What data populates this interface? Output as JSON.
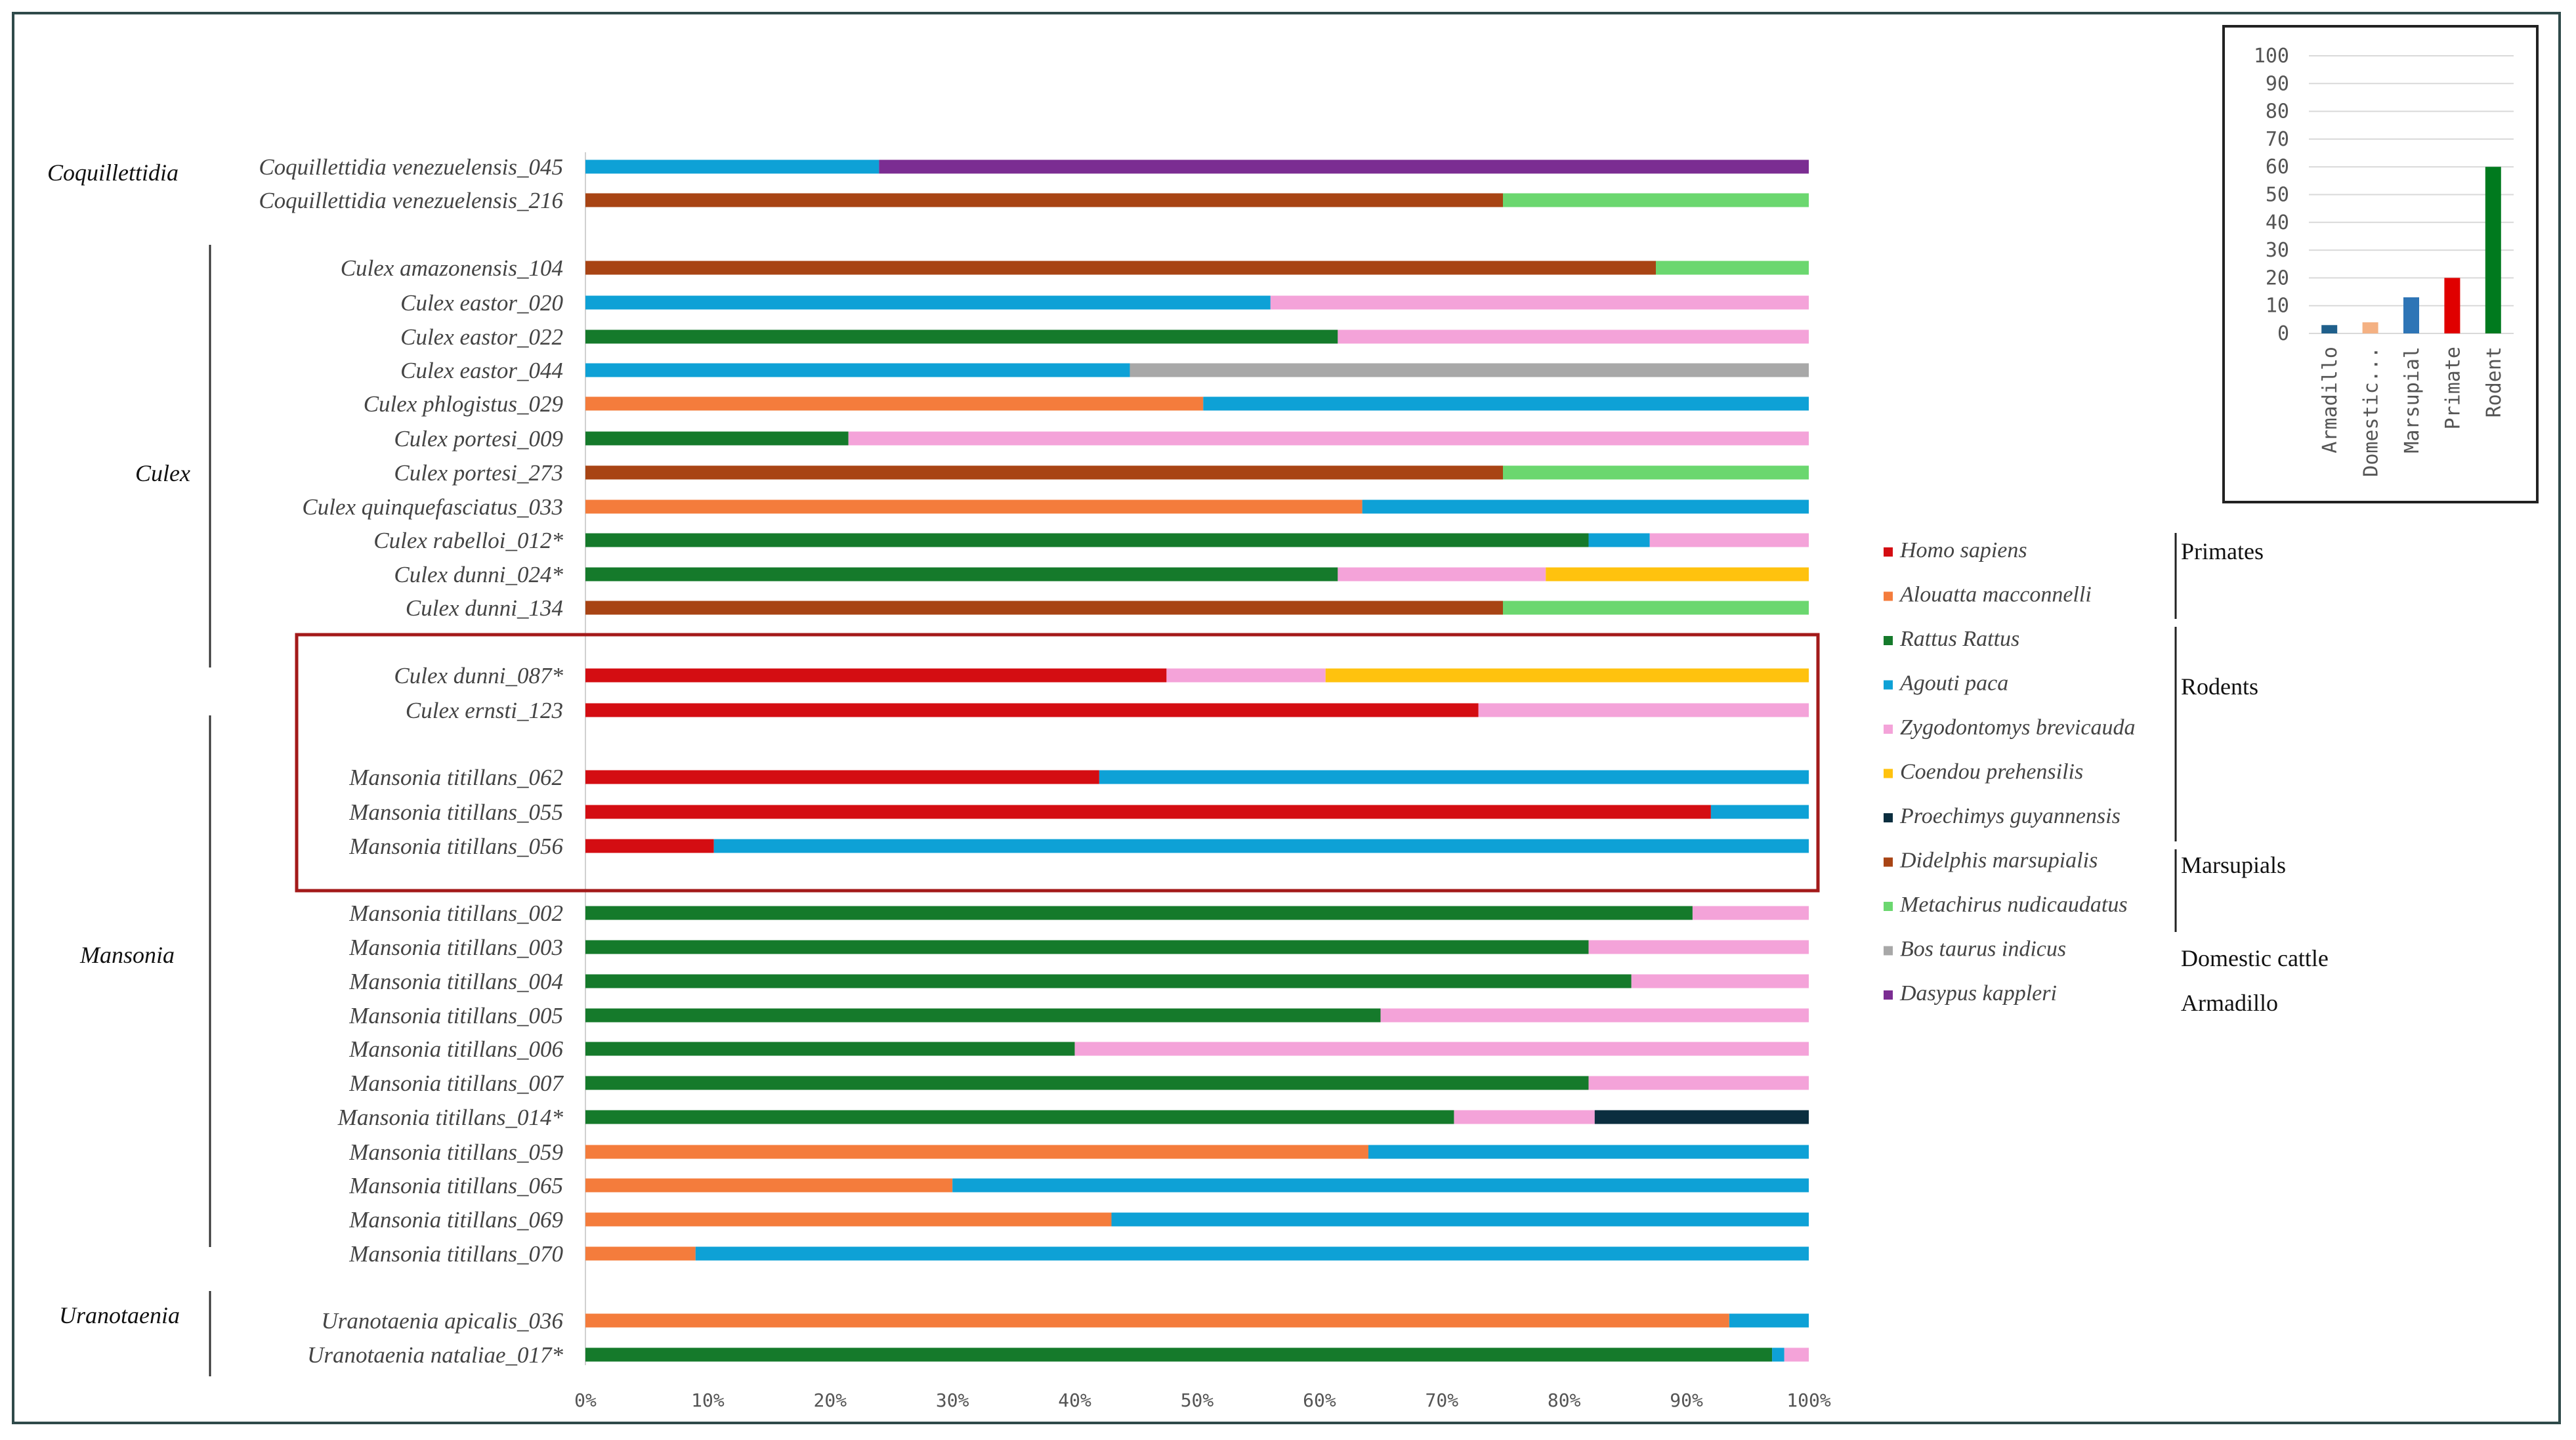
{
  "chart_data": [
    {
      "type": "bar",
      "orientation": "horizontal",
      "stacked": true,
      "xlim": [
        0,
        100
      ],
      "x_ticks": [
        "0%",
        "10%",
        "20%",
        "30%",
        "40%",
        "50%",
        "60%",
        "70%",
        "80%",
        "90%",
        "100%"
      ],
      "colors": {
        "Homo sapiens": "#d40d12",
        "Alouatta macconnelli": "#f47c3c",
        "Rattus Rattus": "#157a2b",
        "Agouti paca": "#0ea1d6",
        "Zygodontomys brevicauda": "#f4a3d9",
        "Coendou prehensilis": "#ffc20e",
        "Proechimys guyannensis": "#0b2e3f",
        "Didelphis marsupialis": "#a84414",
        "Metachirus nudicaudatus": "#6bd76f",
        "Bos taurus indicus": "#a8a8a8",
        "Dasypus kappleri": "#7b2d92"
      },
      "legend": [
        {
          "name": "Homo sapiens",
          "group": "Primates"
        },
        {
          "name": "Alouatta macconnelli",
          "group": "Primates"
        },
        {
          "name": "Rattus Rattus",
          "group": "Rodents"
        },
        {
          "name": "Agouti paca",
          "group": "Rodents"
        },
        {
          "name": "Zygodontomys brevicauda",
          "group": "Rodents"
        },
        {
          "name": "Coendou prehensilis",
          "group": "Rodents"
        },
        {
          "name": "Proechimys guyannensis",
          "group": "Rodents"
        },
        {
          "name": "Didelphis marsupialis",
          "group": "Marsupials"
        },
        {
          "name": "Metachirus nudicaudatus",
          "group": "Marsupials"
        },
        {
          "name": "Bos taurus indicus",
          "group": "Domestic cattle"
        },
        {
          "name": "Dasypus kappleri",
          "group": "Armadillo"
        }
      ],
      "groups": [
        "Primates",
        "Rodents",
        "Marsupials",
        "Domestic cattle",
        "Armadillo"
      ],
      "genera": [
        {
          "name": "Coquillettidia"
        },
        {
          "name": "Culex"
        },
        {
          "name": "Mansonia"
        },
        {
          "name": "Uranotaenia"
        }
      ],
      "rows": [
        {
          "label": "Coquillettidia venezuelensis_045",
          "segments": [
            {
              "species": "Agouti paca",
              "value": 24
            },
            {
              "species": "Dasypus kappleri",
              "value": 76
            }
          ]
        },
        {
          "label": "Coquillettidia venezuelensis_216",
          "segments": [
            {
              "species": "Didelphis marsupialis",
              "value": 75
            },
            {
              "species": "Metachirus nudicaudatus",
              "value": 25
            }
          ]
        },
        {
          "label": "Culex amazonensis_104",
          "segments": [
            {
              "species": "Didelphis marsupialis",
              "value": 87.5
            },
            {
              "species": "Metachirus nudicaudatus",
              "value": 12.5
            }
          ]
        },
        {
          "label": "Culex eastor_020",
          "segments": [
            {
              "species": "Agouti paca",
              "value": 56
            },
            {
              "species": "Zygodontomys brevicauda",
              "value": 44
            }
          ]
        },
        {
          "label": "Culex eastor_022",
          "segments": [
            {
              "species": "Rattus Rattus",
              "value": 61.5
            },
            {
              "species": "Zygodontomys brevicauda",
              "value": 38.5
            }
          ]
        },
        {
          "label": "Culex eastor_044",
          "segments": [
            {
              "species": "Agouti paca",
              "value": 44.5
            },
            {
              "species": "Bos taurus indicus",
              "value": 55.5
            }
          ]
        },
        {
          "label": "Culex phlogistus_029",
          "segments": [
            {
              "species": "Alouatta macconnelli",
              "value": 50.5
            },
            {
              "species": "Agouti paca",
              "value": 49.5
            }
          ]
        },
        {
          "label": "Culex portesi_009",
          "segments": [
            {
              "species": "Rattus Rattus",
              "value": 21.5
            },
            {
              "species": "Zygodontomys brevicauda",
              "value": 78.5
            }
          ]
        },
        {
          "label": "Culex portesi_273",
          "segments": [
            {
              "species": "Didelphis marsupialis",
              "value": 75
            },
            {
              "species": "Metachirus nudicaudatus",
              "value": 25
            }
          ]
        },
        {
          "label": "Culex quinquefasciatus_033",
          "segments": [
            {
              "species": "Alouatta macconnelli",
              "value": 63.5
            },
            {
              "species": "Agouti paca",
              "value": 36.5
            }
          ]
        },
        {
          "label": "Culex rabelloi_012*",
          "segments": [
            {
              "species": "Rattus Rattus",
              "value": 82
            },
            {
              "species": "Agouti paca",
              "value": 5
            },
            {
              "species": "Zygodontomys brevicauda",
              "value": 13
            }
          ]
        },
        {
          "label": "Culex dunni_024*",
          "segments": [
            {
              "species": "Rattus Rattus",
              "value": 61.5
            },
            {
              "species": "Zygodontomys brevicauda",
              "value": 17
            },
            {
              "species": "Coendou prehensilis",
              "value": 21.5
            }
          ]
        },
        {
          "label": "Culex dunni_134",
          "segments": [
            {
              "species": "Didelphis marsupialis",
              "value": 75
            },
            {
              "species": "Metachirus nudicaudatus",
              "value": 25
            }
          ]
        },
        {
          "label": "Culex dunni_087*",
          "segments": [
            {
              "species": "Homo sapiens",
              "value": 47.5
            },
            {
              "species": "Zygodontomys brevicauda",
              "value": 13
            },
            {
              "species": "Coendou prehensilis",
              "value": 39.5
            }
          ]
        },
        {
          "label": "Culex ernsti_123",
          "segments": [
            {
              "species": "Homo sapiens",
              "value": 73
            },
            {
              "species": "Zygodontomys brevicauda",
              "value": 27
            }
          ]
        },
        {
          "label": "Mansonia titillans_062",
          "segments": [
            {
              "species": "Homo sapiens",
              "value": 42
            },
            {
              "species": "Agouti paca",
              "value": 58
            }
          ]
        },
        {
          "label": "Mansonia titillans_055",
          "segments": [
            {
              "species": "Homo sapiens",
              "value": 92
            },
            {
              "species": "Agouti paca",
              "value": 8
            }
          ]
        },
        {
          "label": "Mansonia titillans_056",
          "segments": [
            {
              "species": "Homo sapiens",
              "value": 10.5
            },
            {
              "species": "Agouti paca",
              "value": 89.5
            }
          ]
        },
        {
          "label": "Mansonia titillans_002",
          "segments": [
            {
              "species": "Rattus Rattus",
              "value": 90.5
            },
            {
              "species": "Zygodontomys brevicauda",
              "value": 9.5
            }
          ]
        },
        {
          "label": "Mansonia titillans_003",
          "segments": [
            {
              "species": "Rattus Rattus",
              "value": 82
            },
            {
              "species": "Zygodontomys brevicauda",
              "value": 18
            }
          ]
        },
        {
          "label": "Mansonia titillans_004",
          "segments": [
            {
              "species": "Rattus Rattus",
              "value": 85.5
            },
            {
              "species": "Zygodontomys brevicauda",
              "value": 14.5
            }
          ]
        },
        {
          "label": "Mansonia titillans_005",
          "segments": [
            {
              "species": "Rattus Rattus",
              "value": 65
            },
            {
              "species": "Zygodontomys brevicauda",
              "value": 35
            }
          ]
        },
        {
          "label": "Mansonia titillans_006",
          "segments": [
            {
              "species": "Rattus Rattus",
              "value": 40
            },
            {
              "species": "Zygodontomys brevicauda",
              "value": 60
            }
          ]
        },
        {
          "label": "Mansonia titillans_007",
          "segments": [
            {
              "species": "Rattus Rattus",
              "value": 82
            },
            {
              "species": "Zygodontomys brevicauda",
              "value": 18
            }
          ]
        },
        {
          "label": "Mansonia titillans_014*",
          "segments": [
            {
              "species": "Rattus Rattus",
              "value": 71
            },
            {
              "species": "Zygodontomys brevicauda",
              "value": 11.5
            },
            {
              "species": "Proechimys guyannensis",
              "value": 17.5
            }
          ]
        },
        {
          "label": "Mansonia titillans_059",
          "segments": [
            {
              "species": "Alouatta macconnelli",
              "value": 64
            },
            {
              "species": "Agouti paca",
              "value": 36
            }
          ]
        },
        {
          "label": "Mansonia titillans_065",
          "segments": [
            {
              "species": "Alouatta macconnelli",
              "value": 30
            },
            {
              "species": "Agouti paca",
              "value": 70
            }
          ]
        },
        {
          "label": "Mansonia titillans_069",
          "segments": [
            {
              "species": "Alouatta macconnelli",
              "value": 43
            },
            {
              "species": "Agouti paca",
              "value": 57
            }
          ]
        },
        {
          "label": "Mansonia titillans_070",
          "segments": [
            {
              "species": "Alouatta macconnelli",
              "value": 9
            },
            {
              "species": "Agouti paca",
              "value": 91
            }
          ]
        },
        {
          "label": "Uranotaenia apicalis_036",
          "segments": [
            {
              "species": "Alouatta macconnelli",
              "value": 93.5
            },
            {
              "species": "Agouti paca",
              "value": 6.5
            }
          ]
        },
        {
          "label": "Uranotaenia nataliae_017*",
          "segments": [
            {
              "species": "Rattus Rattus",
              "value": 97
            },
            {
              "species": "Agouti paca",
              "value": 1
            },
            {
              "species": "Zygodontomys brevicauda",
              "value": 2
            }
          ]
        }
      ]
    },
    {
      "type": "bar",
      "orientation": "vertical",
      "categories": [
        "Armadillo",
        "Domestic...",
        "Marsupial",
        "Primate",
        "Rodent"
      ],
      "values": [
        3,
        4,
        13,
        20,
        60
      ],
      "colors": [
        "#1f5f8b",
        "#f4b183",
        "#2e75b6",
        "#e00000",
        "#007a1e"
      ],
      "ylim": [
        0,
        100
      ],
      "y_ticks": [
        "0",
        "10",
        "20",
        "30",
        "40",
        "50",
        "60",
        "70",
        "80",
        "90",
        "100"
      ],
      "grid": true
    }
  ]
}
